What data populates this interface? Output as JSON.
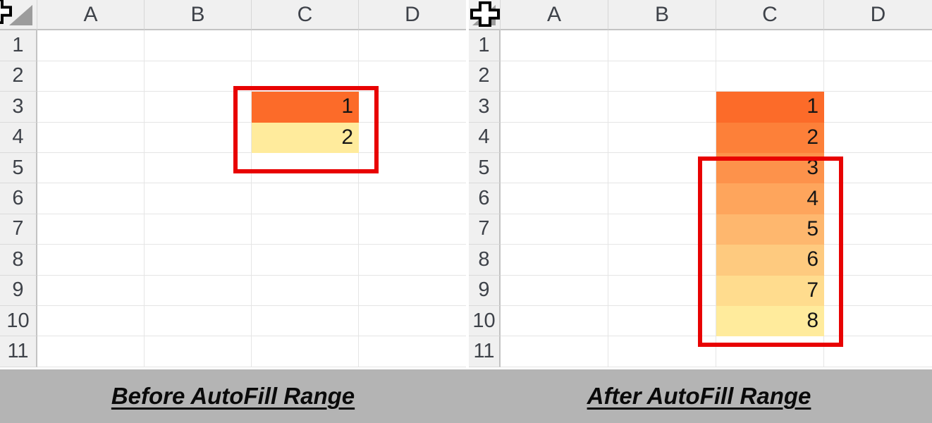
{
  "annotation": {
    "box_color": "#E80202"
  },
  "colors": {
    "header_bg": "#F0F0F0",
    "header_border": "#C3C3C3",
    "gridline": "#E5E5E5",
    "select_all_triangle": "#9C9C9C",
    "caption_band_bg": "#B4B4B4",
    "scale_start_orange": "#FC6B29",
    "scale_end_yellow": "#FFEB9C"
  },
  "icons": {
    "corner_triangle": "select-all-triangle",
    "cursor": "thick-cross-cell-cursor"
  },
  "panels": [
    {
      "caption": "Before AutoFill Range",
      "columns": [
        "A",
        "B",
        "C",
        "D"
      ],
      "row_labels": [
        "1",
        "2",
        "3",
        "4",
        "5",
        "6",
        "7",
        "8",
        "9",
        "10",
        "11"
      ],
      "filled_cells": [
        {
          "cell": "C3",
          "value": "1",
          "color": "#FC6B29"
        },
        {
          "cell": "C4",
          "value": "2",
          "color": "#FFEB9C"
        }
      ]
    },
    {
      "caption": "After AutoFill Range",
      "columns": [
        "A",
        "B",
        "C",
        "D"
      ],
      "row_labels": [
        "1",
        "2",
        "3",
        "4",
        "5",
        "6",
        "7",
        "8",
        "9",
        "10",
        "11"
      ],
      "filled_cells": [
        {
          "cell": "C3",
          "value": "1",
          "color": "#FC6B29"
        },
        {
          "cell": "C4",
          "value": "2",
          "color": "#FD8039"
        },
        {
          "cell": "C5",
          "value": "3",
          "color": "#FD924B"
        },
        {
          "cell": "C6",
          "value": "4",
          "color": "#FEA55C"
        },
        {
          "cell": "C7",
          "value": "5",
          "color": "#FEB76E"
        },
        {
          "cell": "C8",
          "value": "6",
          "color": "#FECA7F"
        },
        {
          "cell": "C9",
          "value": "7",
          "color": "#FFDC8E"
        },
        {
          "cell": "C10",
          "value": "8",
          "color": "#FFEB9C"
        }
      ]
    }
  ]
}
